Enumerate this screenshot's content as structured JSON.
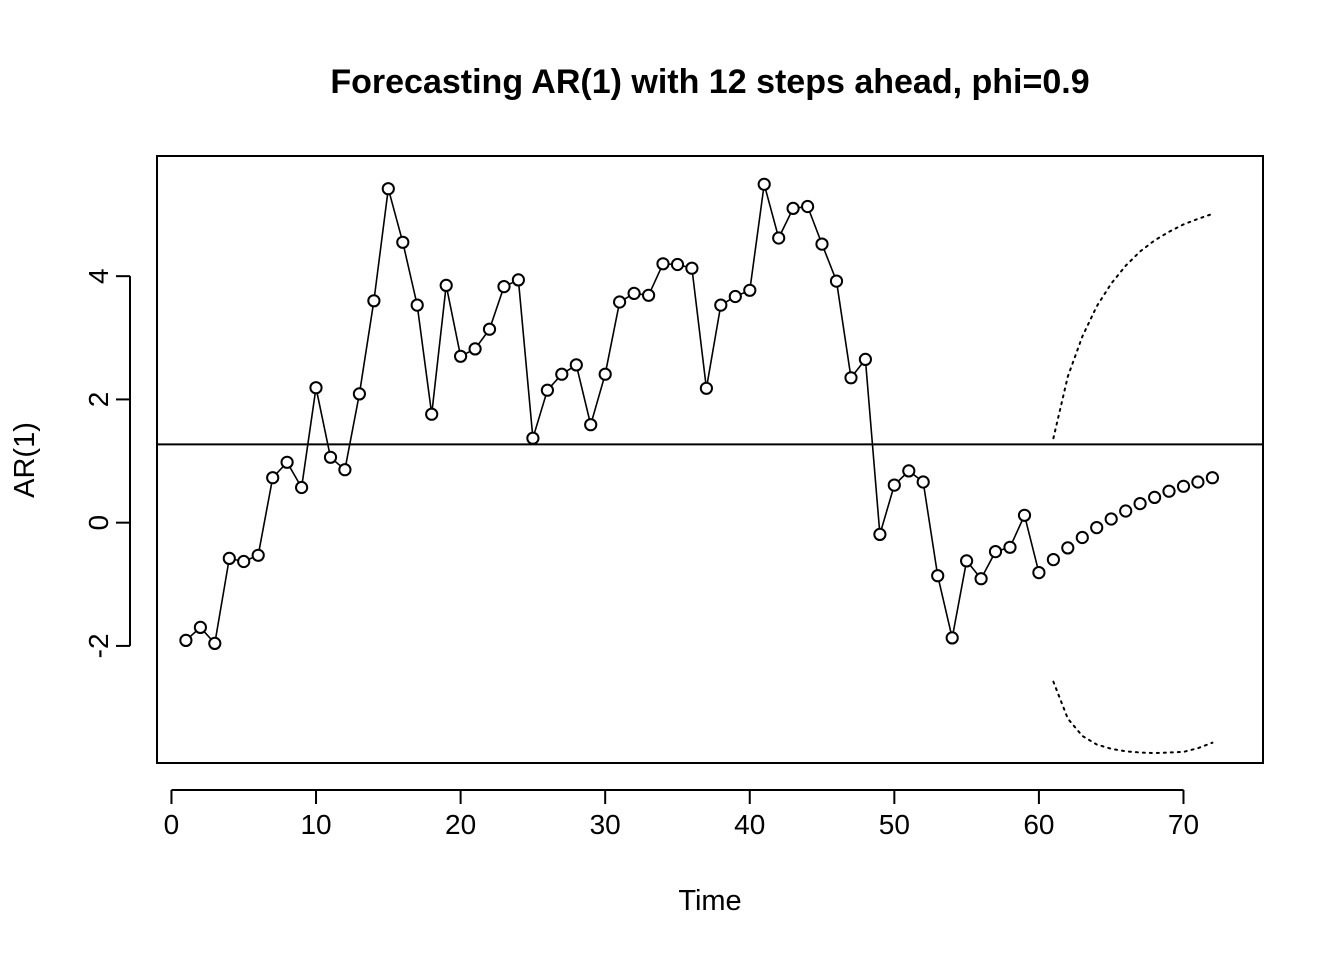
{
  "chart_data": {
    "type": "line",
    "title": "Forecasting AR(1) with 12 steps ahead, phi=0.9",
    "xlabel": "Time",
    "ylabel": "AR(1)",
    "xlim": [
      -1,
      75.5
    ],
    "ylim": [
      -3.9,
      5.95
    ],
    "x_ticks": [
      0,
      10,
      20,
      30,
      40,
      50,
      60,
      70
    ],
    "y_ticks": [
      -2,
      0,
      2,
      4
    ],
    "grid": false,
    "mean_line": 1.27,
    "series": [
      {
        "role": "observed",
        "style": "line-with-open-circles",
        "x": [
          1,
          2,
          3,
          4,
          5,
          6,
          7,
          8,
          9,
          10,
          11,
          12,
          13,
          14,
          15,
          16,
          17,
          18,
          19,
          20,
          21,
          22,
          23,
          24,
          25,
          26,
          27,
          28,
          29,
          30,
          31,
          32,
          33,
          34,
          35,
          36,
          37,
          38,
          39,
          40,
          41,
          42,
          43,
          44,
          45,
          46,
          47,
          48,
          49,
          50,
          51,
          52,
          53,
          54,
          55,
          56,
          57,
          58,
          59,
          60
        ],
        "values": [
          -1.91,
          -1.7,
          -1.96,
          -0.58,
          -0.63,
          -0.53,
          0.73,
          0.98,
          0.57,
          2.19,
          1.06,
          0.86,
          2.09,
          3.6,
          5.42,
          4.55,
          3.53,
          1.76,
          3.85,
          2.7,
          2.82,
          3.14,
          3.83,
          3.94,
          1.37,
          2.15,
          2.41,
          2.56,
          1.59,
          2.41,
          3.58,
          3.72,
          3.69,
          4.2,
          4.19,
          4.13,
          2.18,
          3.53,
          3.67,
          3.77,
          5.49,
          4.62,
          5.1,
          5.13,
          4.52,
          3.92,
          2.35,
          2.65,
          -0.19,
          0.61,
          0.84,
          0.66,
          -0.86,
          -1.87,
          -0.62,
          -0.91,
          -0.47,
          -0.4,
          0.12,
          -0.81
        ]
      },
      {
        "role": "forecast",
        "style": "open-circles",
        "x": [
          61,
          62,
          63,
          64,
          65,
          66,
          67,
          68,
          69,
          70,
          71,
          72
        ],
        "values": [
          -0.6,
          -0.41,
          -0.24,
          -0.08,
          0.06,
          0.19,
          0.31,
          0.41,
          0.51,
          0.59,
          0.66,
          0.73
        ]
      },
      {
        "role": "upper-bound",
        "style": "dotted",
        "x": [
          61,
          62,
          63,
          64,
          65,
          66,
          67,
          68,
          69,
          70,
          71,
          72
        ],
        "values": [
          1.37,
          2.37,
          3.02,
          3.51,
          3.88,
          4.17,
          4.4,
          4.58,
          4.72,
          4.84,
          4.93,
          5.01
        ]
      },
      {
        "role": "lower-bound",
        "style": "dotted",
        "x": [
          61,
          62,
          63,
          64,
          65,
          66,
          67,
          68,
          69,
          70,
          71,
          72
        ],
        "values": [
          -2.58,
          -3.18,
          -3.46,
          -3.6,
          -3.67,
          -3.71,
          -3.73,
          -3.74,
          -3.73,
          -3.72,
          -3.66,
          -3.57
        ]
      }
    ]
  }
}
